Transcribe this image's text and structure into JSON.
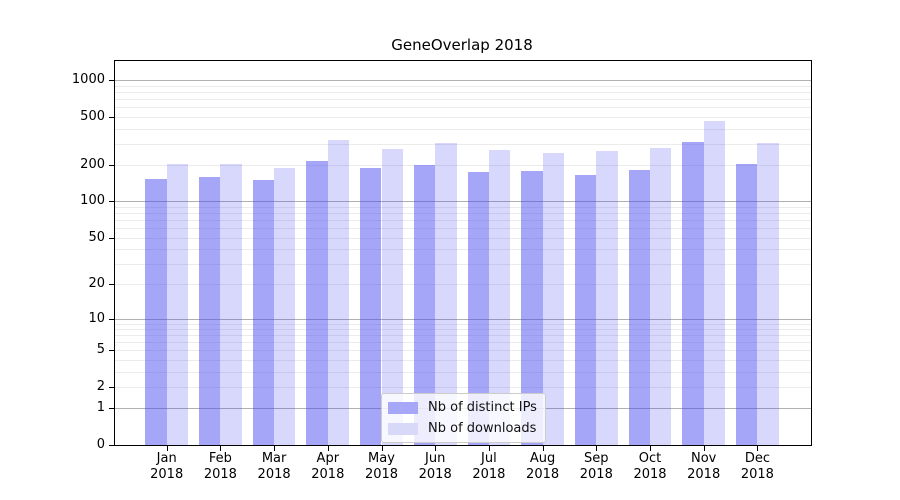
{
  "chart_data": {
    "type": "bar",
    "title": "GeneOverlap 2018",
    "categories": [
      "Jan",
      "Feb",
      "Mar",
      "Apr",
      "May",
      "Jun",
      "Jul",
      "Aug",
      "Sep",
      "Oct",
      "Nov",
      "Dec"
    ],
    "category_year": "2018",
    "series": [
      {
        "name": "Nb of distinct IPs",
        "values": [
          155,
          161,
          150,
          215,
          190,
          199,
          175,
          178,
          166,
          181,
          309,
          205
        ],
        "color": "rgba(70,70,240,0.48)",
        "swatch": "#a7a7f7"
      },
      {
        "name": "Nb of downloads",
        "values": [
          203,
          203,
          188,
          321,
          272,
          307,
          265,
          252,
          260,
          275,
          460,
          303
        ],
        "color": "rgba(70,70,240,0.21)",
        "swatch": "#d8d8f9"
      }
    ],
    "xlabel": "",
    "ylabel": "",
    "yscale": "log1p",
    "ylim": [
      0,
      1445
    ],
    "y_tick_labels": [
      "1000",
      "500",
      "200",
      "100",
      "50",
      "20",
      "10",
      "5",
      "2",
      "1",
      "0"
    ],
    "grid": {
      "orientation": "horizontal",
      "major_at": [
        1,
        10,
        100,
        1000
      ],
      "minor_at": [
        2,
        3,
        4,
        5,
        6,
        7,
        8,
        9,
        20,
        30,
        40,
        50,
        60,
        70,
        80,
        90,
        200,
        300,
        400,
        500,
        600,
        700,
        800,
        900
      ],
      "major_color": "#b0b0b0",
      "minor_color": "#ebebeb"
    },
    "legend_position": "lower center"
  }
}
